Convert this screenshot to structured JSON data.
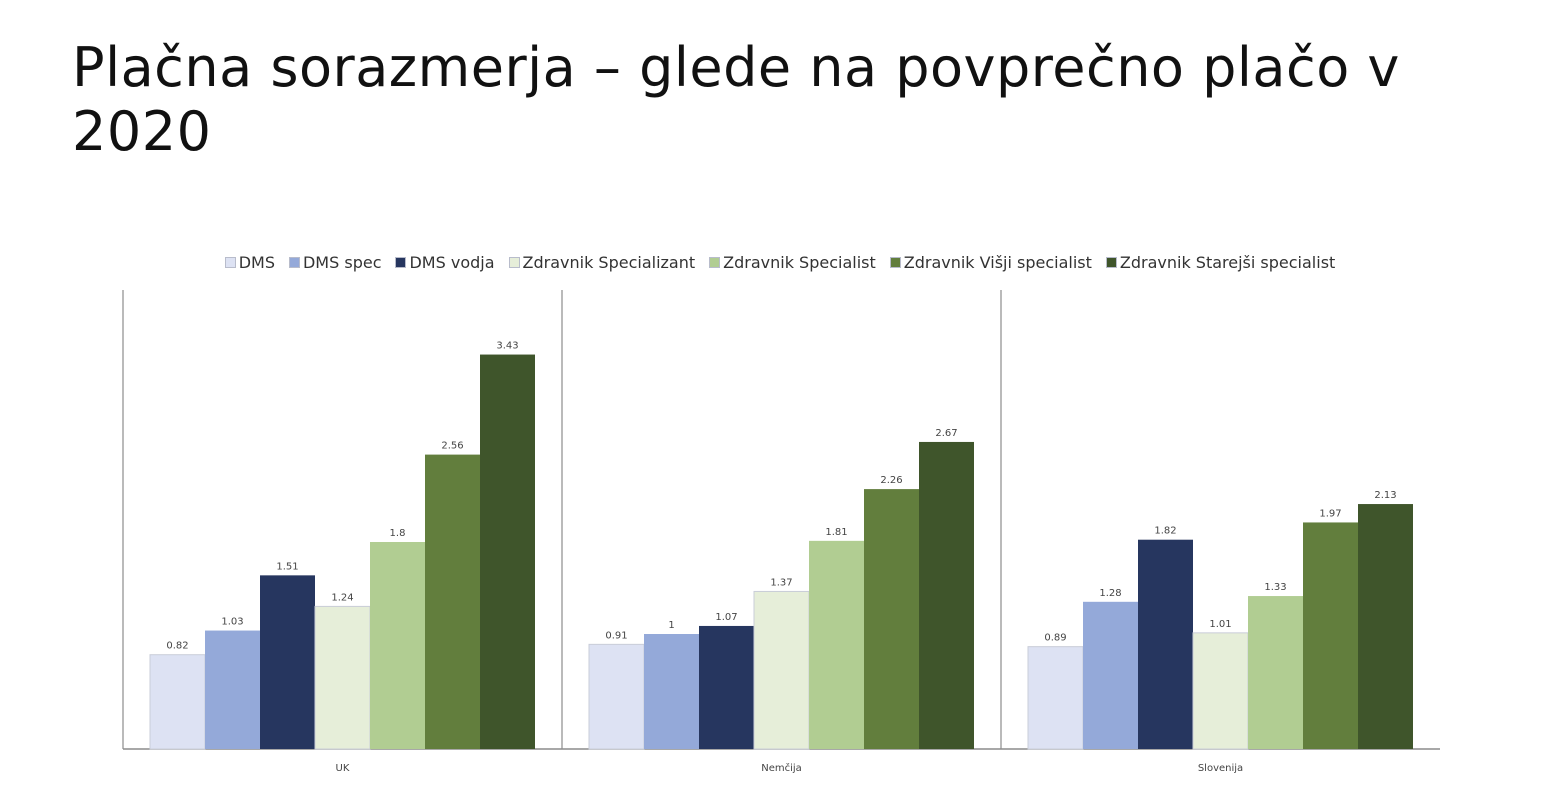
{
  "title": "Plačna sorazmerja – glede na povprečno plačo v 2020",
  "chart_data": {
    "type": "bar",
    "categories": [
      "UK",
      "Nemčija",
      "Slovenija"
    ],
    "series": [
      {
        "name": "DMS",
        "color": "#dde2f3",
        "values": [
          0.82,
          0.91,
          0.89
        ]
      },
      {
        "name": "DMS spec",
        "color": "#94a9d9",
        "values": [
          1.03,
          1,
          1.28
        ]
      },
      {
        "name": "DMS vodja",
        "color": "#26365f",
        "values": [
          1.51,
          1.07,
          1.82
        ]
      },
      {
        "name": "Zdravnik Specializant",
        "color": "#e6eed9",
        "values": [
          1.24,
          1.37,
          1.01
        ]
      },
      {
        "name": "Zdravnik Specialist",
        "color": "#b1cd92",
        "values": [
          1.8,
          1.81,
          1.33
        ]
      },
      {
        "name": "Zdravnik Višji specialist",
        "color": "#627e3d",
        "values": [
          2.56,
          2.26,
          1.97
        ]
      },
      {
        "name": "Zdravnik Starejši specialist",
        "color": "#3f552b",
        "values": [
          3.43,
          2.67,
          2.13
        ]
      }
    ],
    "data_labels": [
      [
        "0.82",
        "1.03",
        "1.51",
        "1.24",
        "1.8",
        "2.56",
        "3.43"
      ],
      [
        "0.91",
        "1",
        "1.07",
        "1.37",
        "1.81",
        "2.26",
        "2.67"
      ],
      [
        "0.89",
        "1.28",
        "1.82",
        "1.01",
        "1.33",
        "1.97",
        "2.13"
      ]
    ],
    "xlabel": "",
    "ylabel": "",
    "ylim": [
      0,
      4
    ],
    "legend_position": "top",
    "grid": false
  }
}
